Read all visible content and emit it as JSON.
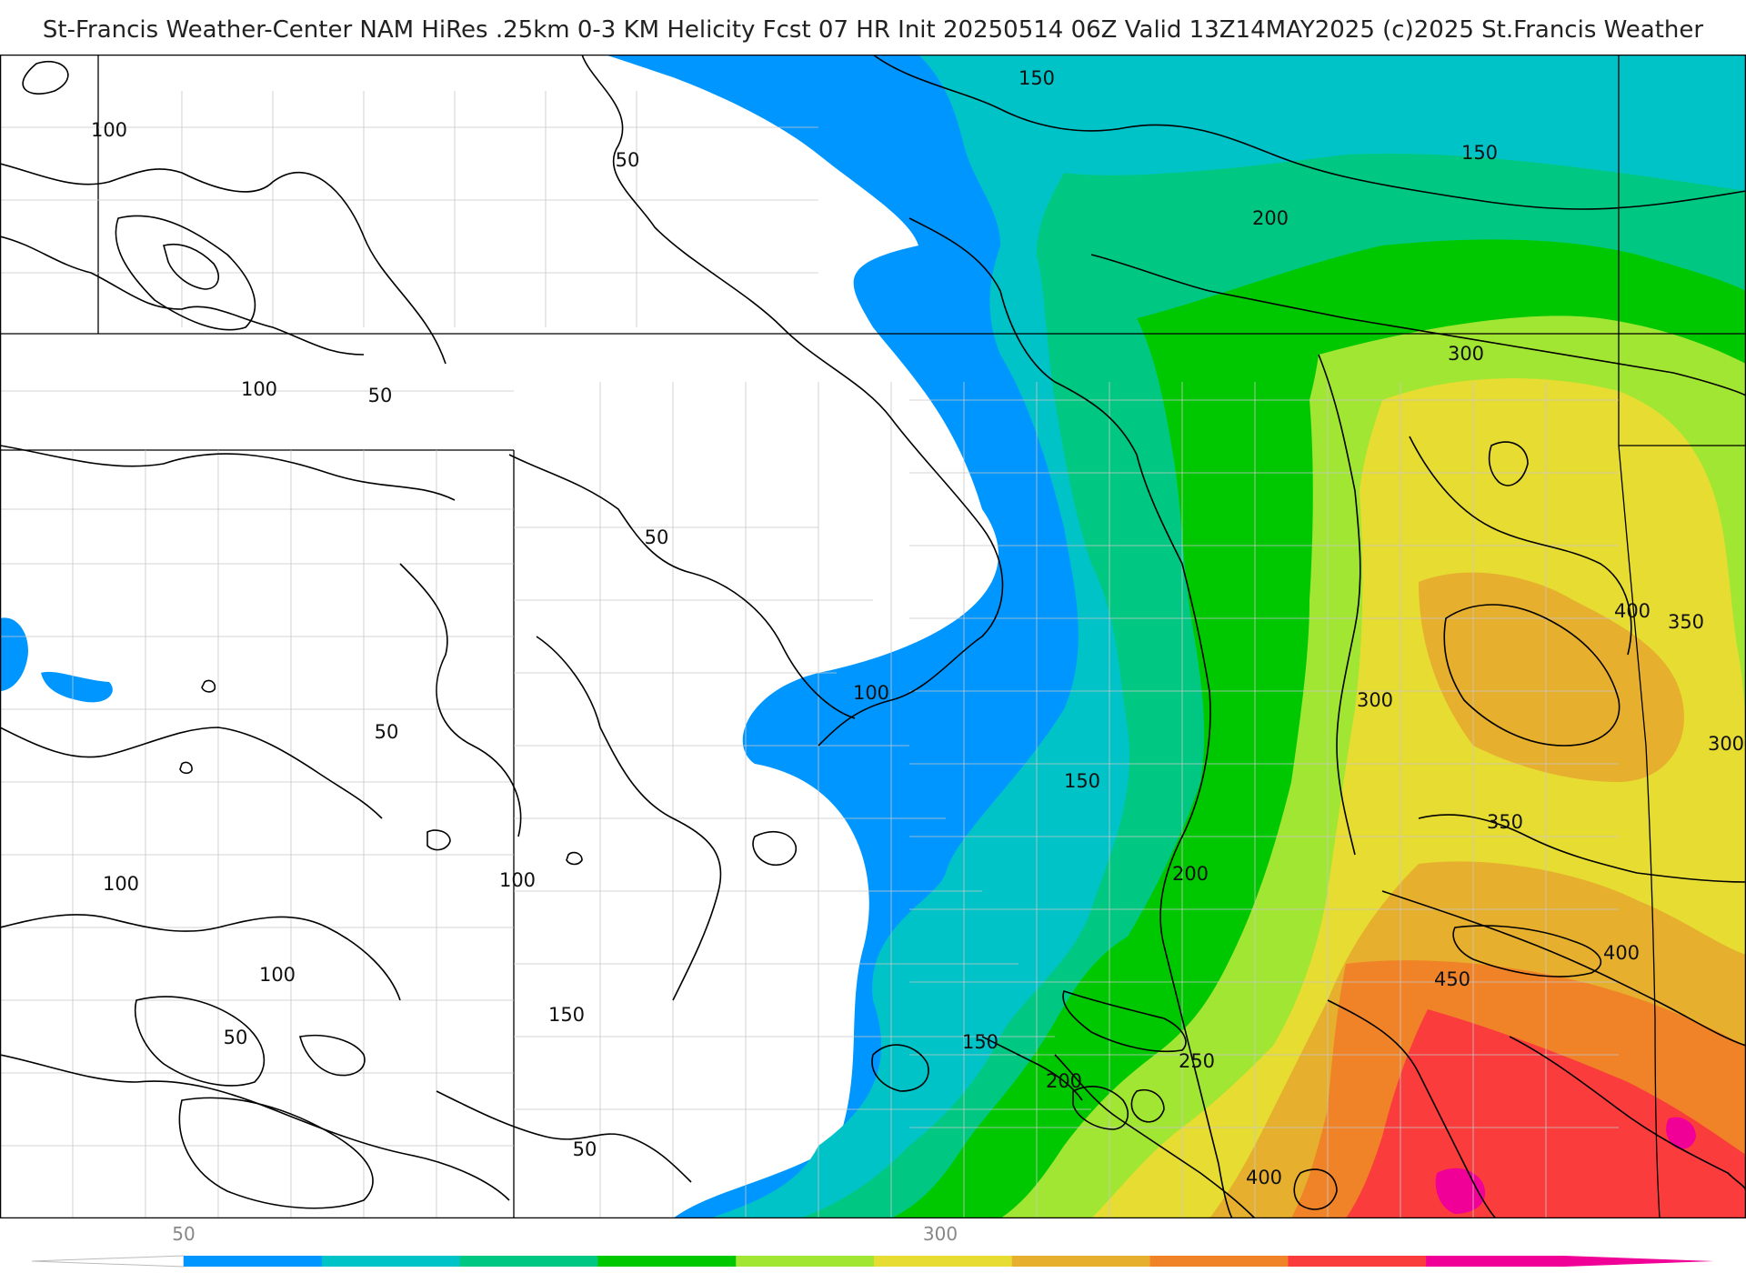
{
  "header": {
    "title": "St-Francis Weather-Center NAM HiRes .25km 0-3 KM Helicity Fcst 07 HR Init 20250514 06Z  Valid 13Z14MAY2025    (c)2025 St.Francis Weather"
  },
  "map": {
    "contour_labels": [
      "150",
      "100",
      "50",
      "150",
      "200",
      "100",
      "50",
      "300",
      "50",
      "400",
      "350",
      "100",
      "300",
      "50",
      "300",
      "150",
      "350",
      "100",
      "100",
      "200",
      "400",
      "100",
      "450",
      "150",
      "50",
      "150",
      "250",
      "200",
      "50",
      "400"
    ]
  },
  "legend": {
    "ticks": [
      "50",
      "300"
    ],
    "colors": [
      "#0096ff",
      "#00c3c8",
      "#00c882",
      "#00c800",
      "#a0e632",
      "#e6dc32",
      "#e6af2d",
      "#f08228",
      "#fa3c3c",
      "#f00096"
    ]
  }
}
